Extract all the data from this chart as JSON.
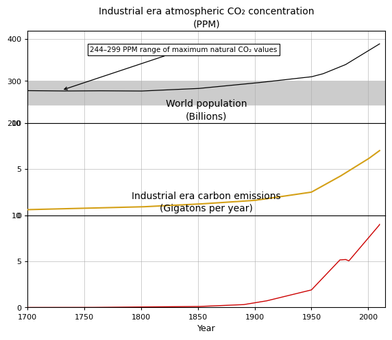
{
  "title1": "Industrial era atmospheric CO₂ concentration",
  "subtitle1": "(PPM)",
  "title2": "World population",
  "subtitle2": "(Billions)",
  "title3": "Industrial era carbon emissions",
  "subtitle3": "(Gigatons per year)",
  "xlabel": "Year",
  "co2_shaded_low": 244,
  "co2_shaded_high": 299,
  "annotation_text": "244–299 PPM range of maximum natural CO₂ values",
  "co2_ylim": [
    200,
    420
  ],
  "pop_ylim": [
    0,
    10
  ],
  "em_ylim": [
    0,
    10
  ],
  "xmin": 1700,
  "xmax": 2015,
  "xticks": [
    1700,
    1750,
    1800,
    1850,
    1900,
    1950,
    2000
  ],
  "co2_yticks": [
    200,
    300,
    400
  ],
  "pop_yticks": [
    0,
    5,
    10
  ],
  "em_yticks": [
    0,
    5,
    10
  ],
  "co2_line_color": "#000000",
  "pop_line_color": "#d4a017",
  "em_line_color": "#cc0000",
  "shaded_color": "#cccccc",
  "background_color": "#ffffff",
  "grid_color": "#aaaaaa"
}
